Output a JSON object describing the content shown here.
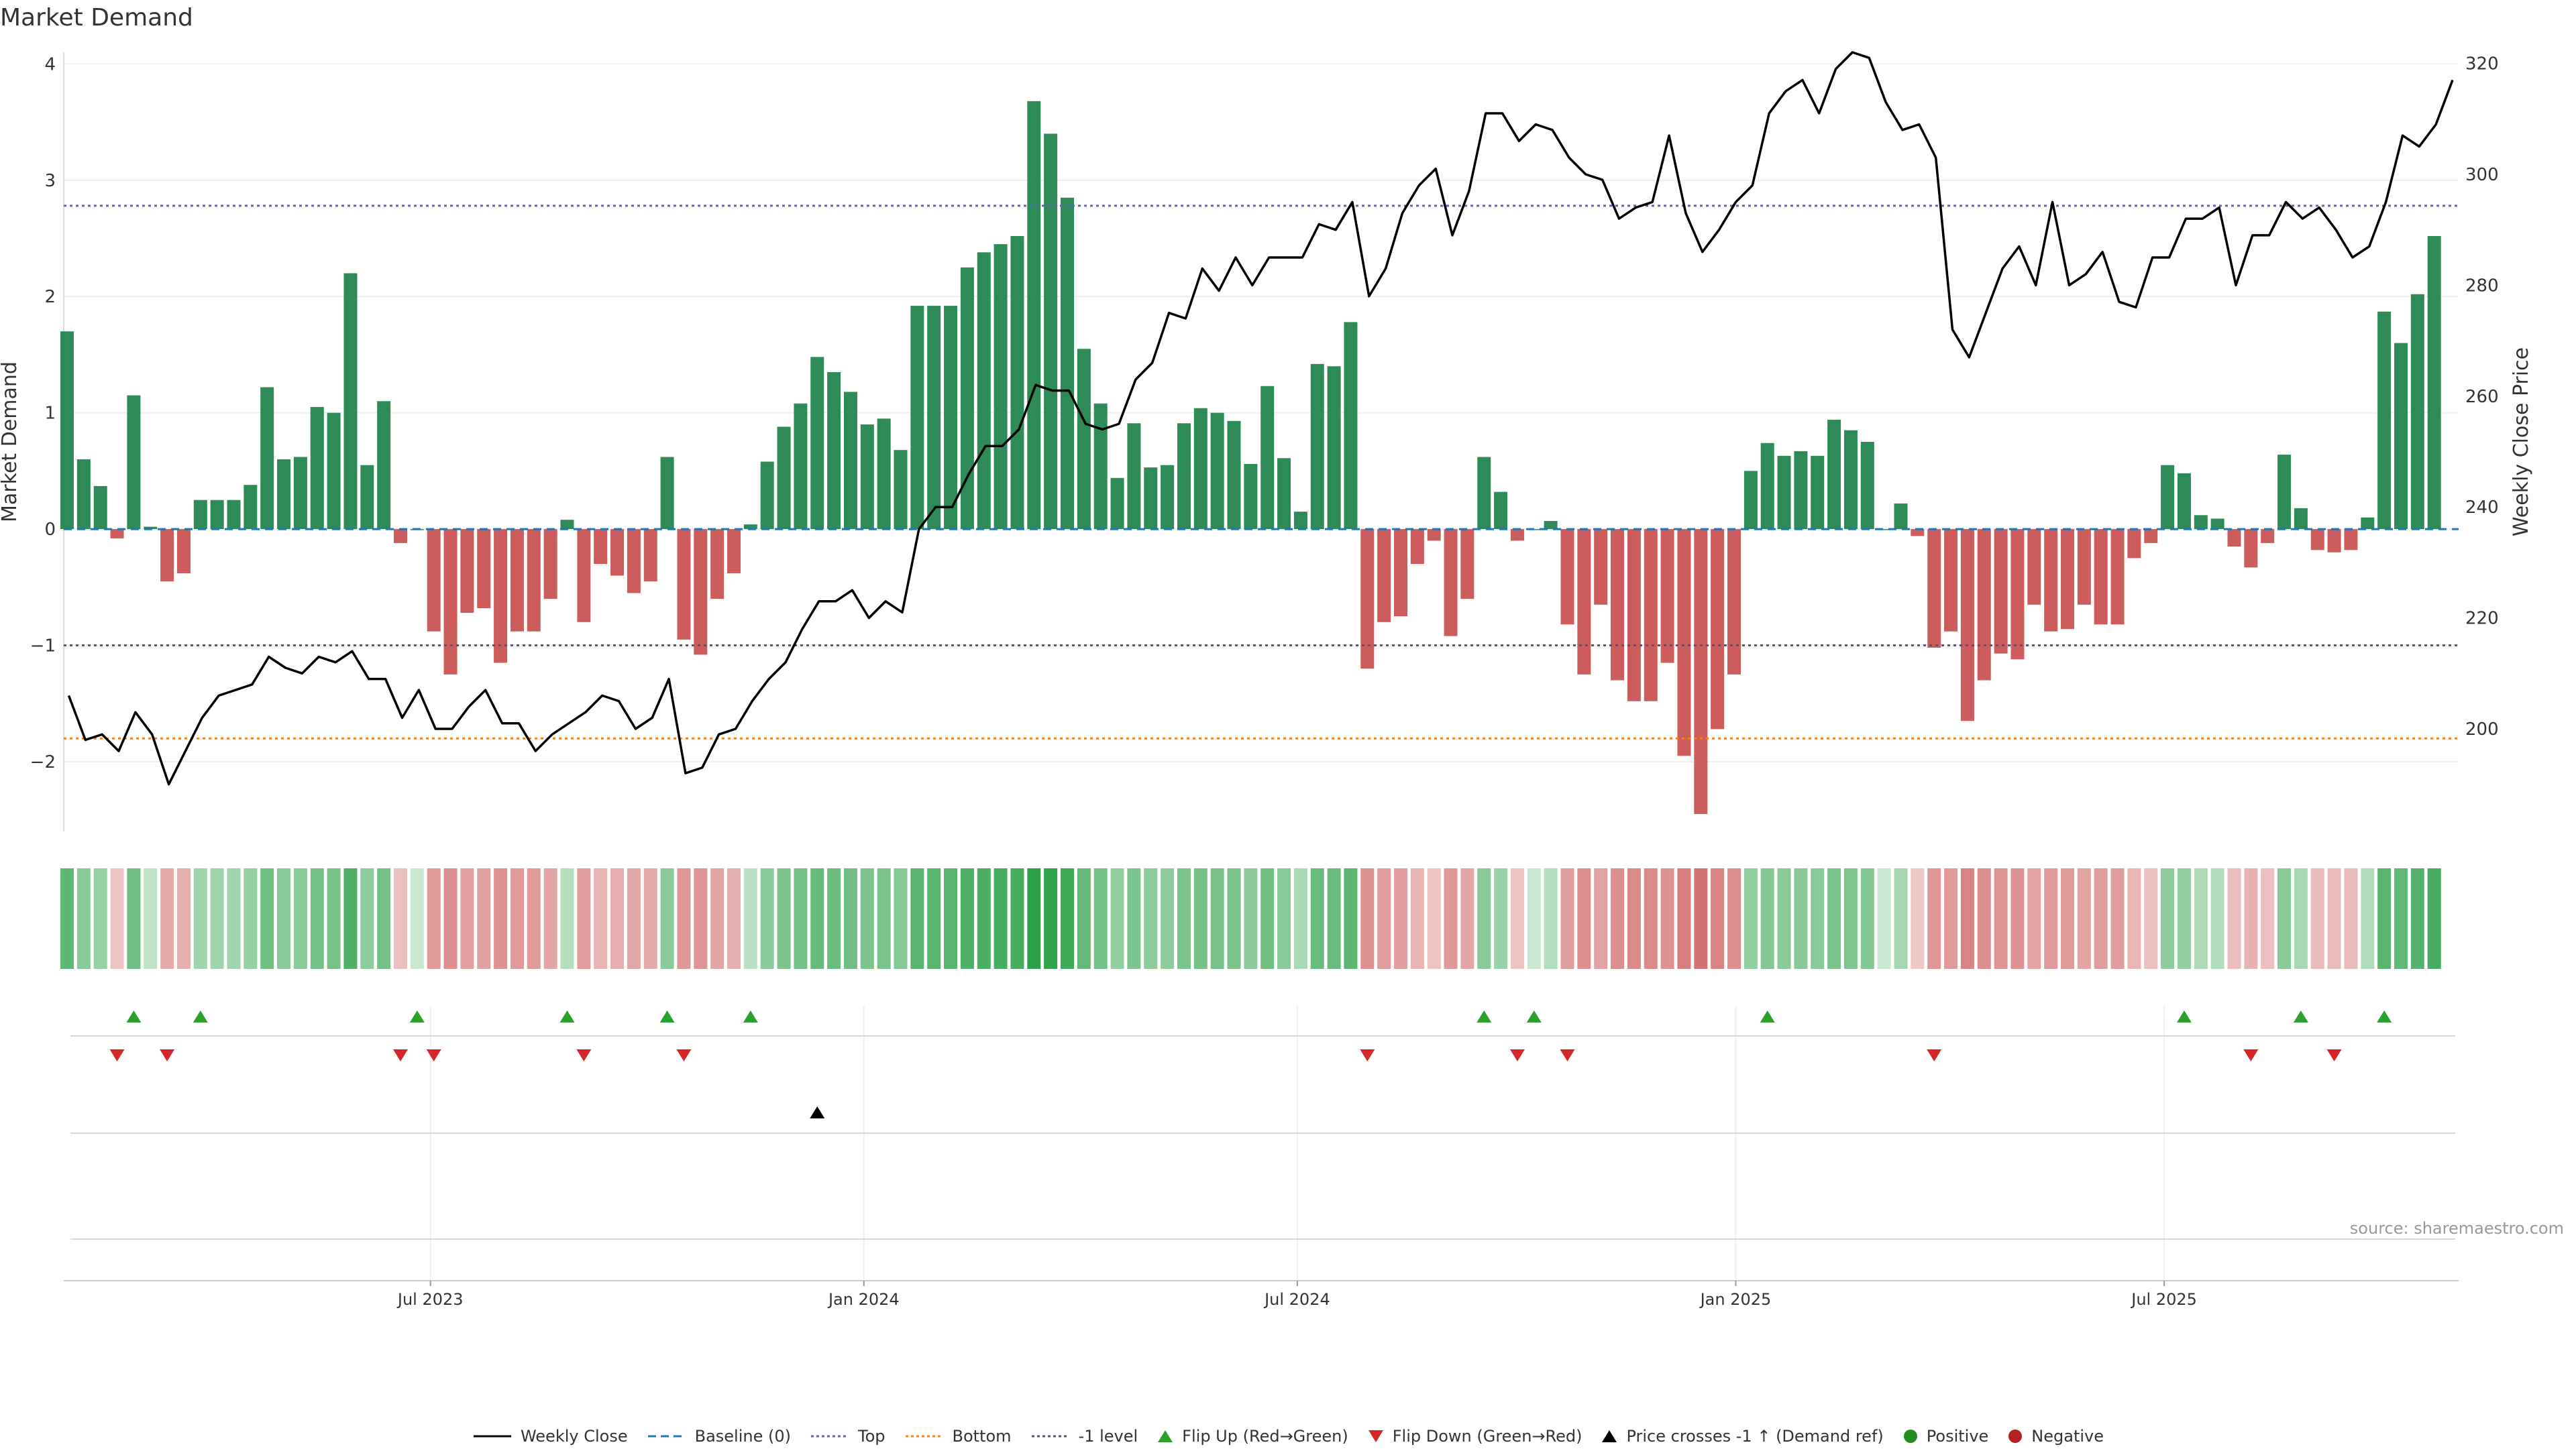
{
  "title": "Market Demand",
  "source": "source: sharemaestro.com",
  "chart_data": {
    "type": "bar",
    "title": "Market Demand",
    "ylabel": "Market Demand",
    "y2label": "Weekly Close Price",
    "ylim": [
      -2.6,
      4.1
    ],
    "y2lim": [
      181.5,
      322
    ],
    "yticks": [
      -2,
      -1,
      0,
      1,
      2,
      3,
      4
    ],
    "y2ticks": [
      200,
      220,
      240,
      260,
      280,
      300,
      320
    ],
    "ytick_labels": [
      "−2",
      "−1",
      "0",
      "1",
      "2",
      "3",
      "4"
    ],
    "y2tick_labels": [
      "200",
      "220",
      "240",
      "260",
      "280",
      "300",
      "320"
    ],
    "x_range_weeks": [
      0,
      143.5
    ],
    "xticks": [
      {
        "label": "Jul 2023",
        "week": 22
      },
      {
        "label": "Jan 2024",
        "week": 48
      },
      {
        "label": "Jul 2024",
        "week": 74
      },
      {
        "label": "Jan 2025",
        "week": 100.3
      },
      {
        "label": "Jul 2025",
        "week": 126
      }
    ],
    "reference_lines": {
      "baseline": 0,
      "top": 2.78,
      "bottom": -1.8,
      "minus_one": -1
    },
    "demand": [
      1.7,
      0.6,
      0.37,
      -0.08,
      1.15,
      0.02,
      -0.45,
      -0.38,
      0.25,
      0.25,
      0.25,
      0.38,
      1.22,
      0.6,
      0.62,
      1.05,
      1.0,
      2.2,
      0.55,
      1.1,
      -0.12,
      0.0,
      -0.88,
      -1.25,
      -0.72,
      -0.68,
      -1.15,
      -0.88,
      -0.88,
      -0.6,
      0.08,
      -0.8,
      -0.3,
      -0.4,
      -0.55,
      -0.45,
      0.62,
      -0.95,
      -1.08,
      -0.6,
      -0.38,
      0.04,
      0.58,
      0.88,
      1.08,
      1.48,
      1.35,
      1.18,
      0.9,
      0.95,
      0.68,
      1.92,
      1.92,
      1.92,
      2.25,
      2.38,
      2.45,
      2.52,
      3.68,
      3.4,
      2.85,
      1.55,
      1.08,
      0.44,
      0.91,
      0.53,
      0.55,
      0.91,
      1.04,
      1.0,
      0.93,
      0.56,
      1.23,
      0.61,
      0.15,
      1.42,
      1.4,
      1.78,
      -1.2,
      -0.8,
      -0.75,
      -0.3,
      -0.1,
      -0.92,
      -0.6,
      0.62,
      0.32,
      -0.1,
      0.0,
      0.07,
      -0.82,
      -1.25,
      -0.65,
      -1.3,
      -1.48,
      -1.48,
      -1.15,
      -1.95,
      -2.45,
      -1.72,
      -1.25,
      0.5,
      0.74,
      0.63,
      0.67,
      0.63,
      0.94,
      0.85,
      0.75,
      0.0,
      0.22,
      -0.06,
      -1.02,
      -0.88,
      -1.65,
      -1.3,
      -1.07,
      -1.12,
      -0.65,
      -0.88,
      -0.86,
      -0.65,
      -0.82,
      -0.82,
      -0.25,
      -0.12,
      0.55,
      0.48,
      0.12,
      0.09,
      -0.15,
      -0.33,
      -0.12,
      0.64,
      0.18,
      -0.18,
      -0.2,
      -0.18,
      0.1,
      1.87,
      1.6,
      2.02,
      2.52
    ],
    "weekly_close": [
      [
        0.3,
        206
      ],
      [
        1.3,
        198
      ],
      [
        2.3,
        199
      ],
      [
        3.3,
        196
      ],
      [
        4.3,
        203
      ],
      [
        5.3,
        199
      ],
      [
        6.3,
        190
      ],
      [
        7.3,
        196
      ],
      [
        8.3,
        202
      ],
      [
        9.3,
        206
      ],
      [
        10.3,
        207
      ],
      [
        11.3,
        208
      ],
      [
        12.3,
        213
      ],
      [
        13.3,
        211
      ],
      [
        14.3,
        210
      ],
      [
        15.3,
        213
      ],
      [
        16.3,
        212
      ],
      [
        17.3,
        214
      ],
      [
        18.3,
        209
      ],
      [
        19.3,
        209
      ],
      [
        20.3,
        202
      ],
      [
        21.3,
        207
      ],
      [
        22.3,
        200
      ],
      [
        23.3,
        200
      ],
      [
        24.3,
        204
      ],
      [
        25.3,
        207
      ],
      [
        26.3,
        201
      ],
      [
        27.3,
        201
      ],
      [
        28.3,
        196
      ],
      [
        29.3,
        199
      ],
      [
        30.3,
        201
      ],
      [
        31.3,
        203
      ],
      [
        32.3,
        206
      ],
      [
        33.3,
        205
      ],
      [
        34.3,
        200
      ],
      [
        35.3,
        202
      ],
      [
        36.3,
        209
      ],
      [
        37.3,
        192
      ],
      [
        38.3,
        193
      ],
      [
        39.3,
        199
      ],
      [
        40.3,
        200
      ],
      [
        41.3,
        205
      ],
      [
        42.3,
        209
      ],
      [
        43.3,
        212
      ],
      [
        44.3,
        218
      ],
      [
        45.3,
        223
      ],
      [
        46.3,
        223
      ],
      [
        47.3,
        225
      ],
      [
        48.3,
        220
      ],
      [
        49.3,
        223
      ],
      [
        50.3,
        221
      ],
      [
        51.3,
        236
      ],
      [
        52.3,
        240
      ],
      [
        53.3,
        240
      ],
      [
        54.3,
        246
      ],
      [
        55.3,
        251
      ],
      [
        56.3,
        251
      ],
      [
        57.3,
        254
      ],
      [
        58.3,
        262
      ],
      [
        59.3,
        261
      ],
      [
        60.3,
        261
      ],
      [
        61.3,
        255
      ],
      [
        62.3,
        254
      ],
      [
        63.3,
        255
      ],
      [
        64.3,
        263
      ],
      [
        65.3,
        266
      ],
      [
        66.3,
        275
      ],
      [
        67.3,
        274
      ],
      [
        68.3,
        283
      ],
      [
        69.3,
        279
      ],
      [
        70.3,
        285
      ],
      [
        71.3,
        280
      ],
      [
        72.3,
        285
      ],
      [
        73.3,
        285
      ],
      [
        74.3,
        285
      ],
      [
        75.3,
        291
      ],
      [
        76.3,
        290
      ],
      [
        77.3,
        295
      ],
      [
        78.3,
        278
      ],
      [
        79.3,
        283
      ],
      [
        80.3,
        293
      ],
      [
        81.3,
        298
      ],
      [
        82.3,
        301
      ],
      [
        83.3,
        289
      ],
      [
        84.3,
        297
      ],
      [
        85.3,
        311
      ],
      [
        86.3,
        311
      ],
      [
        87.3,
        306
      ],
      [
        88.3,
        309
      ],
      [
        89.3,
        308
      ],
      [
        90.3,
        303
      ],
      [
        91.3,
        300
      ],
      [
        92.3,
        299
      ],
      [
        93.3,
        292
      ],
      [
        94.3,
        294
      ],
      [
        95.3,
        295
      ],
      [
        96.3,
        307
      ],
      [
        97.3,
        293
      ],
      [
        98.3,
        286
      ],
      [
        99.3,
        290
      ],
      [
        100.3,
        295
      ],
      [
        101.3,
        298
      ],
      [
        102.3,
        311
      ],
      [
        103.3,
        315
      ],
      [
        104.3,
        317
      ],
      [
        105.3,
        311
      ],
      [
        106.3,
        319
      ],
      [
        107.3,
        322
      ],
      [
        108.3,
        321
      ],
      [
        109.3,
        313
      ],
      [
        110.3,
        308
      ],
      [
        111.3,
        309
      ],
      [
        112.3,
        303
      ],
      [
        113.3,
        272
      ],
      [
        114.3,
        267
      ],
      [
        115.3,
        275
      ],
      [
        116.3,
        283
      ],
      [
        117.3,
        287
      ],
      [
        118.3,
        280
      ],
      [
        119.3,
        295
      ],
      [
        120.3,
        280
      ],
      [
        121.3,
        282
      ],
      [
        122.3,
        286
      ],
      [
        123.3,
        277
      ],
      [
        124.3,
        276
      ],
      [
        125.3,
        285
      ],
      [
        126.3,
        285
      ],
      [
        127.3,
        292
      ],
      [
        128.3,
        292
      ],
      [
        129.3,
        294
      ],
      [
        130.3,
        280
      ],
      [
        131.3,
        289
      ],
      [
        132.3,
        289
      ],
      [
        133.3,
        295
      ],
      [
        134.3,
        292
      ],
      [
        135.3,
        294
      ],
      [
        136.3,
        290
      ],
      [
        137.3,
        285
      ],
      [
        138.3,
        287
      ],
      [
        139.3,
        295
      ],
      [
        140.3,
        307
      ],
      [
        141.3,
        305
      ],
      [
        142.3,
        309
      ],
      [
        143.3,
        317
      ]
    ],
    "flip_up_weeks": [
      4,
      8,
      21,
      30,
      36,
      41,
      85,
      88,
      102,
      127,
      134,
      139
    ],
    "flip_down_weeks": [
      3,
      6,
      20,
      22,
      31,
      37,
      78,
      87,
      90,
      112,
      131,
      136
    ],
    "price_cross_weeks": [
      45
    ],
    "legend": [
      "Weekly Close",
      "Baseline (0)",
      "Top",
      "Bottom",
      "-1 level",
      "Flip Up (Red→Green)",
      "Flip Down (Green→Red)",
      "Price crosses -1 ↑ (Demand ref)",
      "Positive",
      "Negative"
    ],
    "colors": {
      "positive": "#2e8b57",
      "negative": "#cd5c5c",
      "price": "#000000",
      "baseline": "#1f77b4",
      "top": "#6a5acd",
      "bottom": "#ff7f0e",
      "minus_one": "#555577",
      "flip_up": "#2ca02c",
      "flip_down": "#d62728",
      "cross": "#000000",
      "dot_positive": "#228b22",
      "dot_negative": "#b22222"
    }
  }
}
